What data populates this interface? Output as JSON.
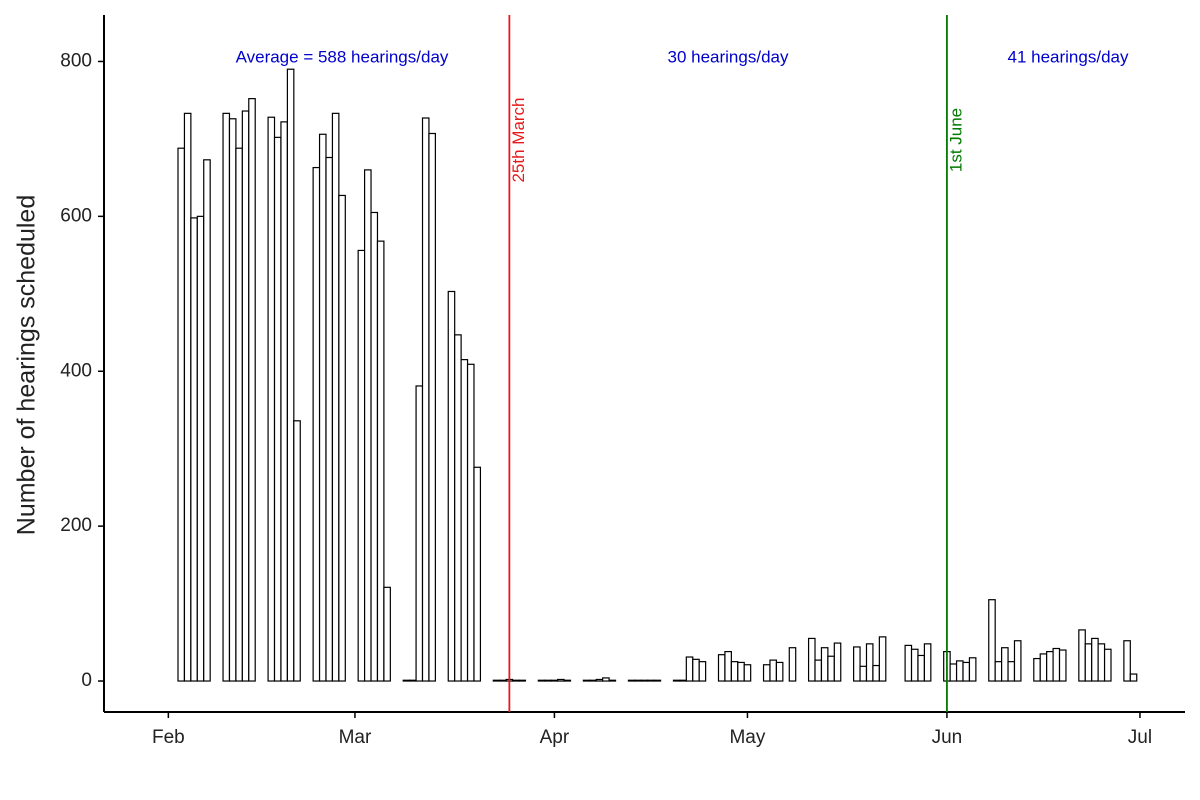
{
  "chart_data": {
    "type": "bar",
    "y_label": "Number of hearings scheduled",
    "x": [
      -2,
      -1,
      2,
      3,
      4,
      5,
      6,
      9,
      10,
      11,
      12,
      13,
      16,
      17,
      18,
      19,
      20,
      23,
      24,
      25,
      26,
      27,
      30,
      31,
      32,
      33,
      34,
      37,
      38,
      39,
      40,
      41,
      44,
      45,
      46,
      47,
      48,
      51,
      52,
      53,
      54,
      55,
      58,
      59,
      60,
      61,
      62,
      65,
      66,
      67,
      68,
      69,
      72,
      73,
      74,
      75,
      76,
      79,
      80,
      81,
      82,
      83,
      86,
      87,
      88,
      89,
      90,
      93,
      94,
      95,
      97,
      100,
      101,
      102,
      103,
      104,
      107,
      108,
      109,
      110,
      111,
      114,
      115,
      116,
      117,
      118,
      121,
      122,
      123,
      124,
      125,
      128,
      129,
      130,
      131,
      132,
      135,
      136,
      137,
      138,
      139,
      142,
      143,
      144,
      145,
      146,
      149,
      150
    ],
    "values": [
      0,
      0,
      688,
      733,
      598,
      600,
      673,
      733,
      726,
      688,
      736,
      752,
      728,
      702,
      722,
      790,
      336,
      663,
      706,
      676,
      733,
      627,
      556,
      660,
      605,
      568,
      121,
      1,
      1,
      381,
      727,
      707,
      503,
      447,
      415,
      409,
      276,
      1,
      1,
      2,
      1,
      1,
      1,
      1,
      1,
      2,
      1,
      1,
      1,
      2,
      4,
      1,
      1,
      1,
      1,
      1,
      1,
      1,
      1,
      31,
      28,
      25,
      34,
      38,
      25,
      24,
      21,
      21,
      27,
      24,
      43,
      55,
      27,
      43,
      32,
      49,
      44,
      19,
      48,
      20,
      57,
      0,
      46,
      41,
      33,
      48,
      38,
      22,
      26,
      24,
      30,
      105,
      25,
      43,
      25,
      52,
      29,
      35,
      38,
      42,
      40,
      66,
      48,
      55,
      48,
      41,
      52,
      9
    ],
    "color": "#ffffff",
    "xlim": [
      -10,
      158
    ],
    "xticks": [
      {
        "value": 0,
        "label": "Feb"
      },
      {
        "value": 29,
        "label": "Mar"
      },
      {
        "value": 60,
        "label": "Apr"
      },
      {
        "value": 90,
        "label": "May"
      },
      {
        "value": 121,
        "label": "Jun"
      },
      {
        "value": 151,
        "label": "Jul"
      }
    ],
    "ylim": [
      -40,
      860
    ],
    "yticks": [
      0,
      200,
      400,
      600,
      800
    ],
    "vlines": [
      {
        "x": 53,
        "label": "25th March",
        "color": "#e41a1c"
      },
      {
        "x": 121,
        "label": "1st June",
        "color": "#007a00"
      }
    ],
    "annotations": [
      "Average = 588 hearings/day",
      "30 hearings/day",
      "41 hearings/day"
    ],
    "annotation_color": "#0000cc"
  }
}
